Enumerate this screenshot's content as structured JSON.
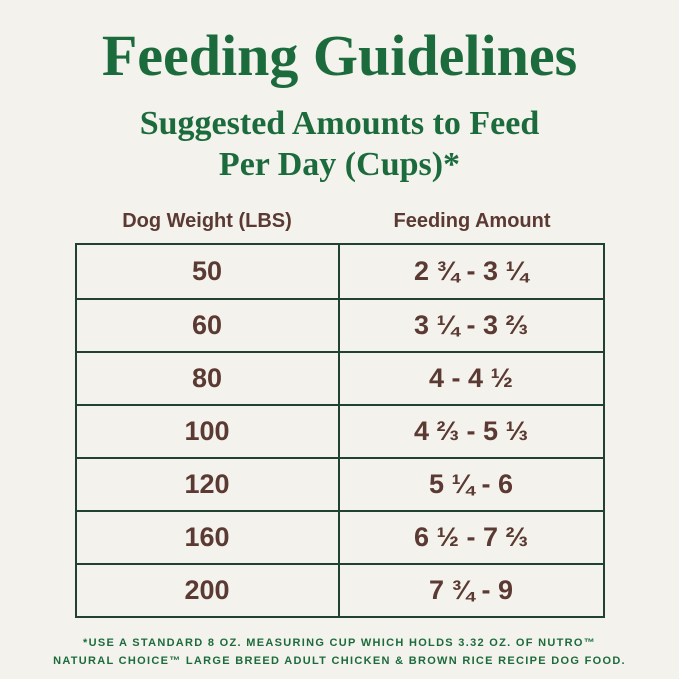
{
  "page": {
    "title": "Feeding Guidelines",
    "subtitle_line1": "Suggested Amounts to Feed",
    "subtitle_line2": "Per Day (Cups)*"
  },
  "table": {
    "headers": [
      "Dog Weight (LBS)",
      "Feeding Amount"
    ],
    "rows": [
      [
        "50",
        "2 ¾ - 3 ¼"
      ],
      [
        "60",
        "3 ¼ - 3 ⅔"
      ],
      [
        "80",
        "4 - 4 ½"
      ],
      [
        "100",
        "4 ⅔ - 5 ⅓"
      ],
      [
        "120",
        "5 ¼ - 6"
      ],
      [
        "160",
        "6 ½ - 7 ⅔"
      ],
      [
        "200",
        "7 ¾ - 9"
      ]
    ]
  },
  "footnote": {
    "line1": "*USE A STANDARD 8 OZ. MEASURING CUP WHICH HOLDS 3.32 OZ. OF NUTRO™",
    "line2": "NATURAL CHOICE™ LARGE BREED ADULT CHICKEN & BROWN RICE RECIPE DOG FOOD."
  },
  "colors": {
    "background": "#f4f2ec",
    "heading_green": "#1c6b3d",
    "table_text_brown": "#5b3a33",
    "table_border": "#224231"
  }
}
